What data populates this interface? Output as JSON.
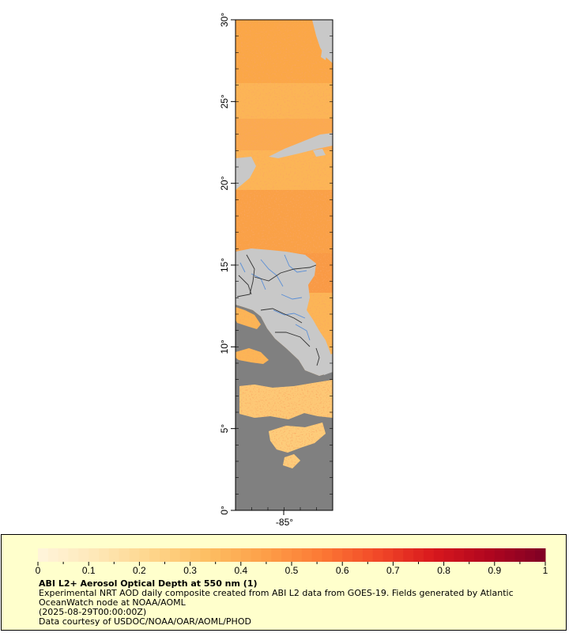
{
  "map": {
    "lat_labels": [
      "0°",
      "5°",
      "10°",
      "15°",
      "20°",
      "25°",
      "30°"
    ],
    "lat_values": [
      0,
      5,
      10,
      15,
      20,
      25,
      30
    ],
    "lon_label": "-85°",
    "lat_range": [
      0,
      30
    ],
    "lon_range": [
      -88,
      -82
    ],
    "colors": {
      "frame": "#000000",
      "missing_data": "#808080",
      "land": "#c8c8c8",
      "rivers": "#5b8fd6",
      "borders": "#333333",
      "aod_field": "#fcb556"
    }
  },
  "legend": {
    "tick_labels": [
      "0",
      "0.1",
      "0.2",
      "0.3",
      "0.4",
      "0.5",
      "0.6",
      "0.7",
      "0.8",
      "0.9",
      "1"
    ],
    "min": 0,
    "max": 1,
    "colormap": [
      "#fff5dc",
      "#fee8b8",
      "#fed68c",
      "#fdbe63",
      "#fda049",
      "#fc7a35",
      "#f24a28",
      "#d9181d",
      "#b0061f",
      "#7f0024"
    ]
  },
  "caption": {
    "title": "ABI L2+ Aerosol Optical Depth at 550 nm (1)",
    "line1": "Experimental NRT AOD daily composite created from ABI L2 data from GOES-19. Fields generated by Atlantic",
    "line2": "OceanWatch node at NOAA/AOML",
    "line3": "(2025-08-29T00:00:00Z)",
    "line4": "Data courtesy of USDOC/NOAA/OAR/AOML/PHOD"
  }
}
